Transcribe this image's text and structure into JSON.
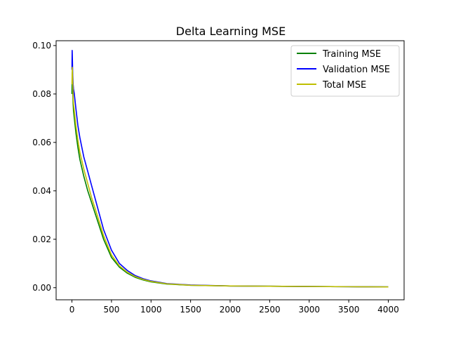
{
  "chart_data": {
    "type": "line",
    "title": "Delta Learning MSE",
    "xlabel": "",
    "ylabel": "",
    "xlim": [
      -200,
      4200
    ],
    "ylim": [
      -0.005,
      0.102
    ],
    "x_ticks": [
      0,
      500,
      1000,
      1500,
      2000,
      2500,
      3000,
      3500,
      4000
    ],
    "x_tick_labels": [
      "0",
      "500",
      "1000",
      "1500",
      "2000",
      "2500",
      "3000",
      "3500",
      "4000"
    ],
    "y_ticks": [
      0.0,
      0.02,
      0.04,
      0.06,
      0.08,
      0.1
    ],
    "y_tick_labels": [
      "0.00",
      "0.02",
      "0.04",
      "0.06",
      "0.08",
      "0.10"
    ],
    "grid": false,
    "legend_position": "top-right",
    "series": [
      {
        "name": "Training MSE",
        "color": "#008000",
        "x": [
          0,
          5,
          10,
          15,
          20,
          30,
          50,
          75,
          100,
          150,
          200,
          250,
          300,
          400,
          500,
          600,
          700,
          800,
          900,
          1000,
          1200,
          1500,
          2000,
          2500,
          3000,
          3500,
          4000
        ],
        "y": [
          0.08,
          0.089,
          0.082,
          0.076,
          0.073,
          0.07,
          0.064,
          0.058,
          0.053,
          0.046,
          0.04,
          0.035,
          0.03,
          0.02,
          0.0125,
          0.0085,
          0.006,
          0.0043,
          0.0032,
          0.0024,
          0.0015,
          0.001,
          0.0007,
          0.0006,
          0.0005,
          0.0004,
          0.0003
        ]
      },
      {
        "name": "Validation MSE",
        "color": "#0000ff",
        "x": [
          0,
          3,
          6,
          10,
          15,
          20,
          30,
          50,
          75,
          100,
          150,
          200,
          250,
          300,
          400,
          500,
          600,
          700,
          800,
          900,
          1000,
          1200,
          1500,
          2000,
          2500,
          3000,
          3500,
          4000
        ],
        "y": [
          0.09,
          0.098,
          0.094,
          0.088,
          0.084,
          0.082,
          0.08,
          0.074,
          0.067,
          0.062,
          0.054,
          0.048,
          0.042,
          0.036,
          0.024,
          0.0155,
          0.01,
          0.0071,
          0.005,
          0.0037,
          0.0028,
          0.0017,
          0.0011,
          0.0007,
          0.0006,
          0.0005,
          0.0004,
          0.0003
        ]
      },
      {
        "name": "Total MSE",
        "color": "#bfbf00",
        "x": [
          0,
          5,
          10,
          15,
          20,
          30,
          50,
          75,
          100,
          150,
          200,
          250,
          300,
          400,
          500,
          600,
          700,
          800,
          900,
          1000,
          1200,
          1500,
          2000,
          2500,
          3000,
          3500,
          4000
        ],
        "y": [
          0.084,
          0.091,
          0.085,
          0.079,
          0.076,
          0.073,
          0.067,
          0.061,
          0.056,
          0.049,
          0.043,
          0.037,
          0.032,
          0.0215,
          0.0135,
          0.009,
          0.0064,
          0.0046,
          0.0034,
          0.0026,
          0.0016,
          0.001,
          0.0007,
          0.0006,
          0.0005,
          0.0004,
          0.0003
        ]
      }
    ]
  }
}
